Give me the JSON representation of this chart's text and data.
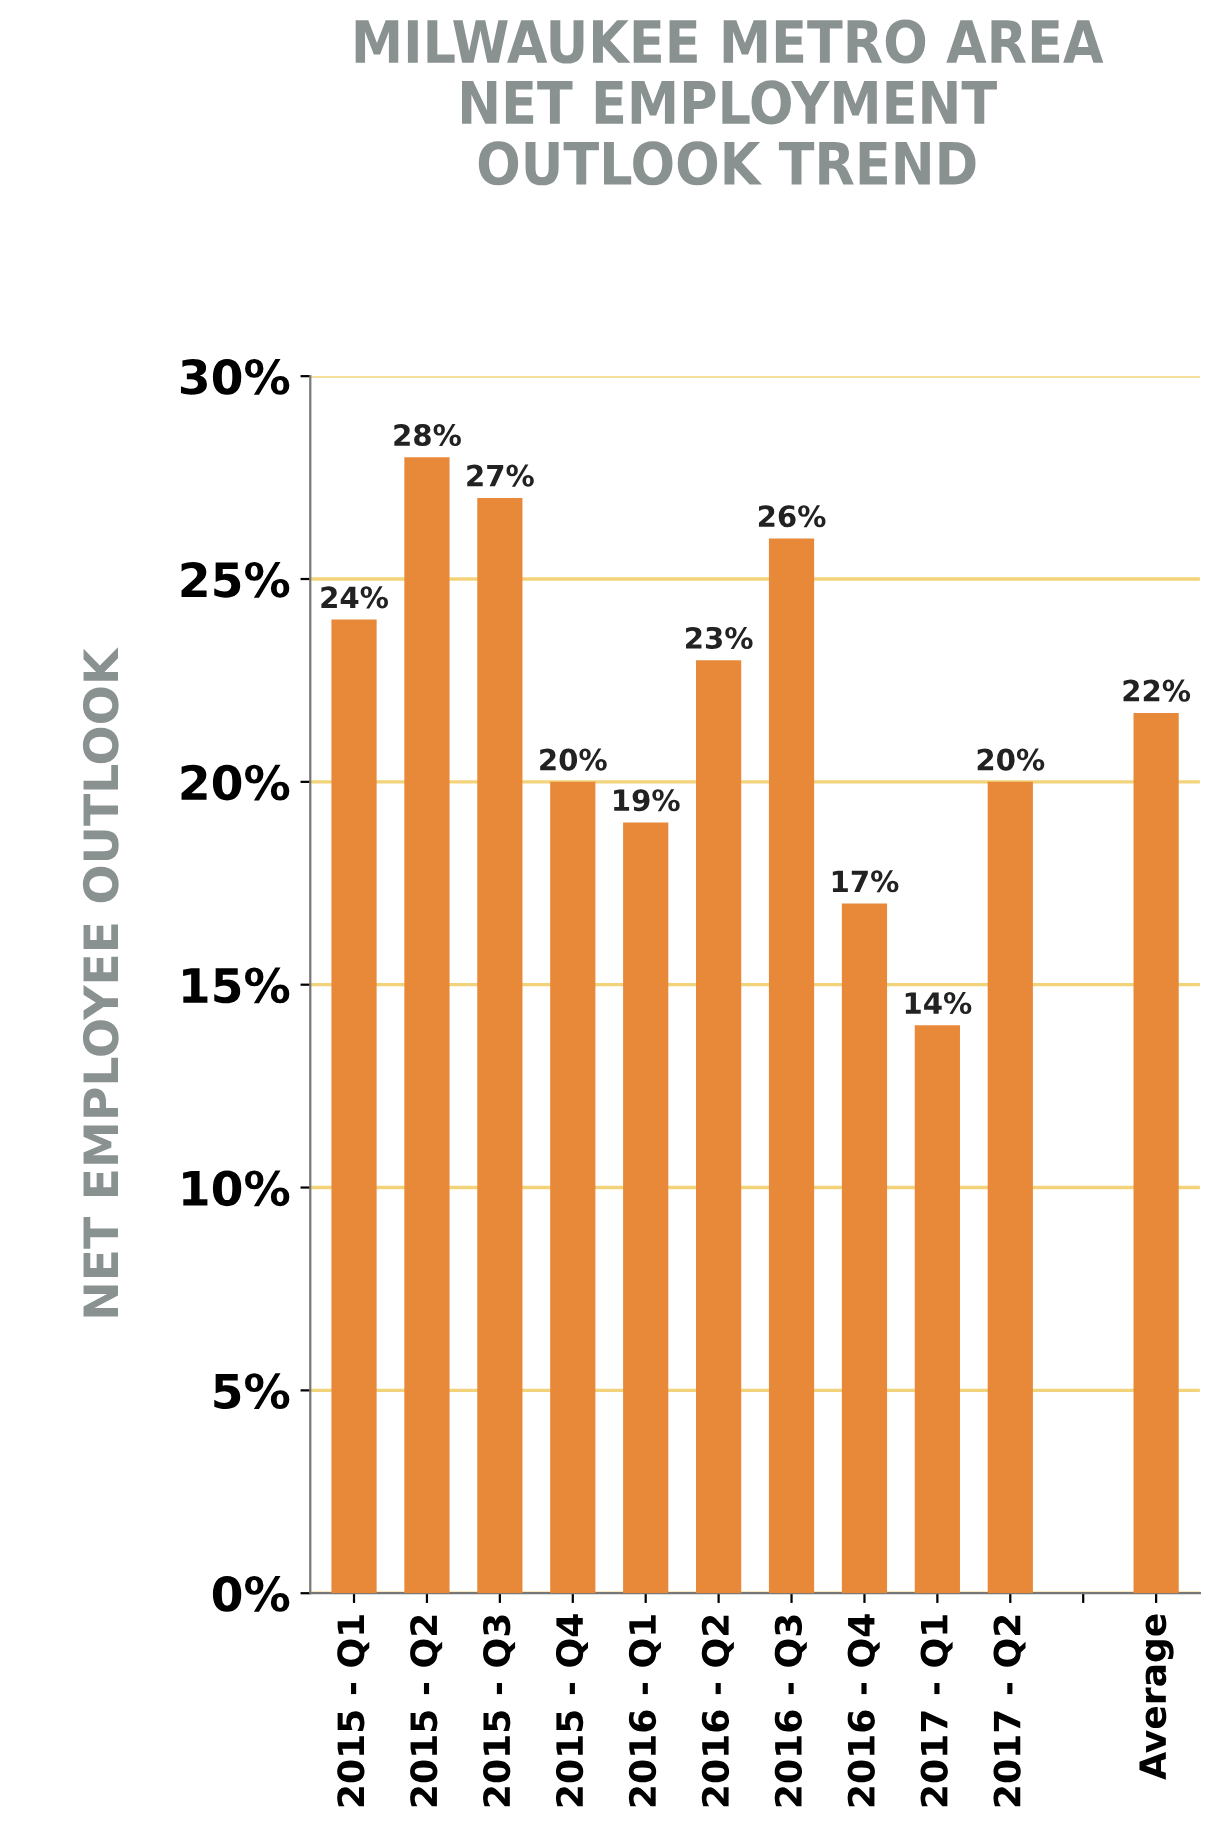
{
  "chart_data": {
    "type": "bar",
    "title": "MILWAUKEE METRO AREA\nNET EMPLOYMENT\nOUTLOOK TREND",
    "ylabel": "NET EMPLOYEE OUTLOOK",
    "categories": [
      "2015 - Q1",
      "2015 - Q2",
      "2015 - Q3",
      "2015 - Q4",
      "2016 - Q1",
      "2016 - Q2",
      "2016 - Q3",
      "2016 - Q4",
      "2017 - Q1",
      "2017 - Q2",
      null,
      "Average"
    ],
    "values": [
      24,
      28,
      27,
      20,
      19,
      23,
      26,
      17,
      14,
      20,
      null,
      21.7
    ],
    "value_labels": [
      "24%",
      "28%",
      "27%",
      "20%",
      "19%",
      "23%",
      "26%",
      "17%",
      "14%",
      "20%",
      null,
      "22%"
    ],
    "color": "#e8893a",
    "ylim": [
      0,
      30
    ],
    "yticks": [
      {
        "value": 0,
        "label": "0%"
      },
      {
        "value": 5,
        "label": "5%"
      },
      {
        "value": 10,
        "label": "10%"
      },
      {
        "value": 15,
        "label": "15%"
      },
      {
        "value": 20,
        "label": "20%"
      },
      {
        "value": 25,
        "label": "25%"
      },
      {
        "value": 30,
        "label": "30%"
      }
    ],
    "grid": "y"
  }
}
